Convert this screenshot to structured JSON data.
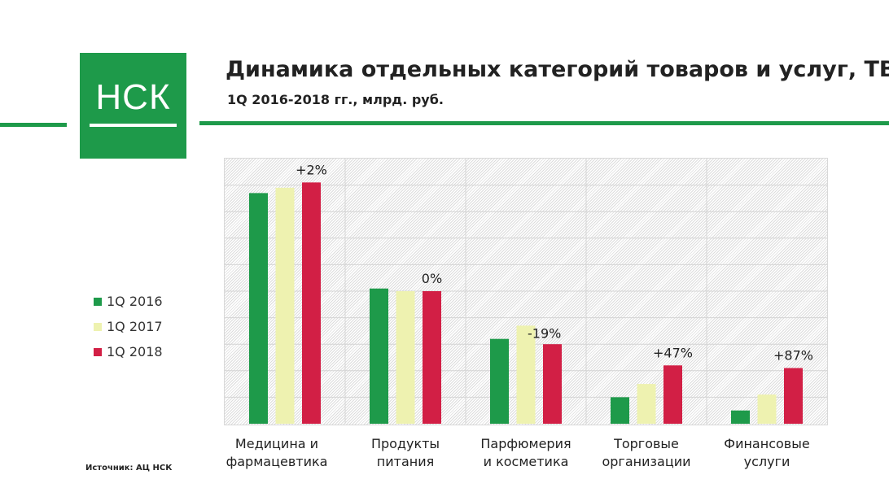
{
  "logo": {
    "text": "НСК"
  },
  "title": "Динамика отдельных категорий товаров и услуг, ТВ",
  "subtitle": "1Q 2016-2018 гг., млрд. руб.",
  "source": "Источник: АЦ НСК",
  "colors": {
    "brand": "#1e9a4a",
    "s2016": "#1e9a4a",
    "s2017": "#eef2b0",
    "s2018": "#d21f45"
  },
  "chart_data": {
    "type": "bar",
    "title": "Динамика отдельных категорий товаров и услуг, ТВ",
    "subtitle": "1Q 2016-2018 гг., млрд. руб.",
    "categories": [
      "Медицина и фармацевтика",
      "Продукты питания",
      "Парфюмерия и косметика",
      "Торговые организации",
      "Финансовые услуги"
    ],
    "category_lines": [
      [
        "Медицина и",
        "фармацевтика"
      ],
      [
        "Продукты",
        "питания"
      ],
      [
        "Парфюмерия",
        "и косметика"
      ],
      [
        "Торговые",
        "организации"
      ],
      [
        "Финансовые",
        "услуги"
      ]
    ],
    "series": [
      {
        "name": "1Q 2016",
        "values": [
          8.7,
          5.1,
          3.2,
          1.0,
          0.5
        ]
      },
      {
        "name": "1Q 2017",
        "values": [
          8.9,
          5.0,
          3.7,
          1.5,
          1.1
        ]
      },
      {
        "name": "1Q 2018",
        "values": [
          9.1,
          5.0,
          3.0,
          2.2,
          2.1
        ]
      }
    ],
    "annotations": [
      "+2%",
      "0%",
      "-19%",
      "+47%",
      "+87%"
    ],
    "ylim": [
      0,
      10
    ],
    "y_axis_labels_shown": false,
    "grid": true,
    "legend_position": "left"
  }
}
